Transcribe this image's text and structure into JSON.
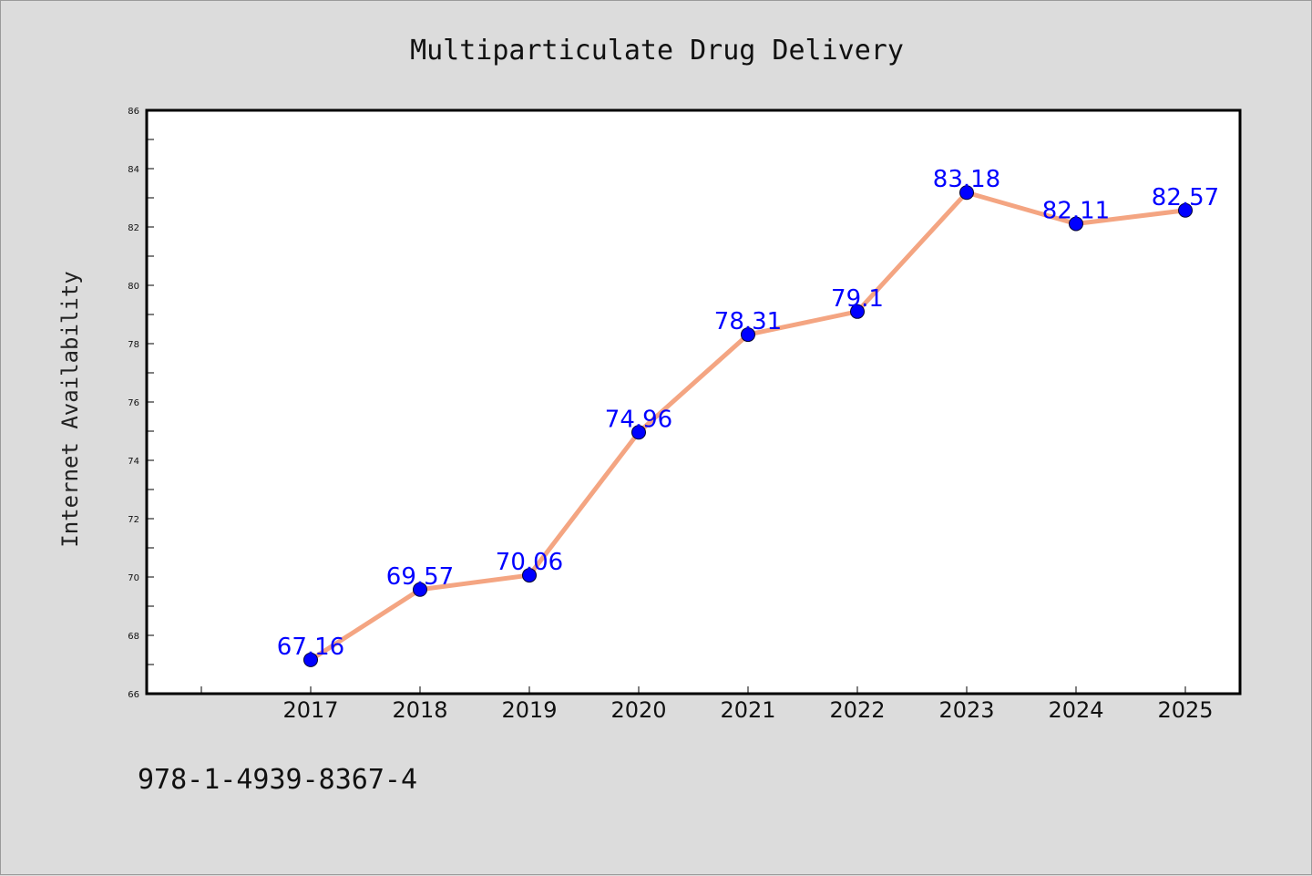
{
  "chart_data": {
    "type": "line",
    "title": "Multiparticulate Drug Delivery",
    "xlabel": "",
    "ylabel": "Internet Availability",
    "categories": [
      "2017",
      "2018",
      "2019",
      "2020",
      "2021",
      "2022",
      "2023",
      "2024",
      "2025"
    ],
    "values": [
      67.16,
      69.57,
      70.06,
      74.96,
      78.31,
      79.1,
      83.18,
      82.11,
      82.57
    ],
    "data_labels": [
      "67.16",
      "69.57",
      "70.06",
      "74.96",
      "78.31",
      "79.1",
      "83.18",
      "82.11",
      "82.57"
    ],
    "ylim": [
      66,
      86
    ],
    "yticks": [
      "66",
      "68",
      "70",
      "72",
      "74",
      "76",
      "78",
      "80",
      "82",
      "84",
      "86"
    ],
    "grid": false,
    "line_color": "#f4a582",
    "marker_color": "#0000ff",
    "label_color": "#0000ff",
    "background": "#dcdcdc",
    "plot_background": "#ffffff"
  },
  "footer": {
    "isbn": "978-1-4939-8367-4"
  }
}
